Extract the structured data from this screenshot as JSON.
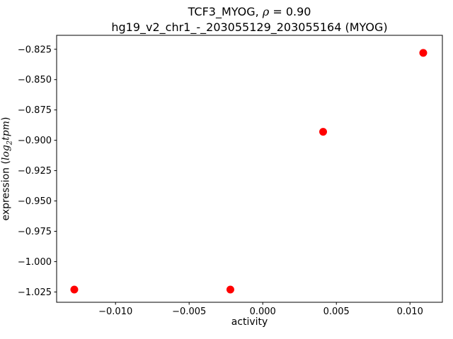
{
  "chart_data": {
    "type": "scatter",
    "title": {
      "line1_prefix": "TCF3_MYOG, ",
      "line1_rho": "ρ",
      "line1_suffix": " = 0.90",
      "line2": "hg19_v2_chr1_-_203055129_203055164 (MYOG)"
    },
    "xlabel": "activity",
    "ylabel": {
      "prefix": "expression (",
      "log": "log",
      "sub": "2",
      "tpm": "tpm",
      "suffix": ")"
    },
    "xlim": [
      -0.014,
      0.0122
    ],
    "ylim": [
      -1.0335,
      -0.8135
    ],
    "xticks": [
      {
        "value": -0.01,
        "label": "−0.010"
      },
      {
        "value": -0.005,
        "label": "−0.005"
      },
      {
        "value": 0.0,
        "label": "0.000"
      },
      {
        "value": 0.005,
        "label": "0.005"
      },
      {
        "value": 0.01,
        "label": "0.010"
      }
    ],
    "yticks": [
      {
        "value": -0.825,
        "label": "−0.825"
      },
      {
        "value": -0.85,
        "label": "−0.850"
      },
      {
        "value": -0.875,
        "label": "−0.875"
      },
      {
        "value": -0.9,
        "label": "−0.900"
      },
      {
        "value": -0.925,
        "label": "−0.925"
      },
      {
        "value": -0.95,
        "label": "−0.950"
      },
      {
        "value": -0.975,
        "label": "−0.975"
      },
      {
        "value": -1.0,
        "label": "−1.000"
      },
      {
        "value": -1.025,
        "label": "−1.025"
      }
    ],
    "points": [
      {
        "x": -0.0128,
        "y": -1.023
      },
      {
        "x": -0.0022,
        "y": -1.023
      },
      {
        "x": 0.0041,
        "y": -0.893
      },
      {
        "x": 0.0109,
        "y": -0.828
      }
    ],
    "marker_color": "#ff0000",
    "spine_color": "#000000",
    "grid": false,
    "legend": null
  }
}
